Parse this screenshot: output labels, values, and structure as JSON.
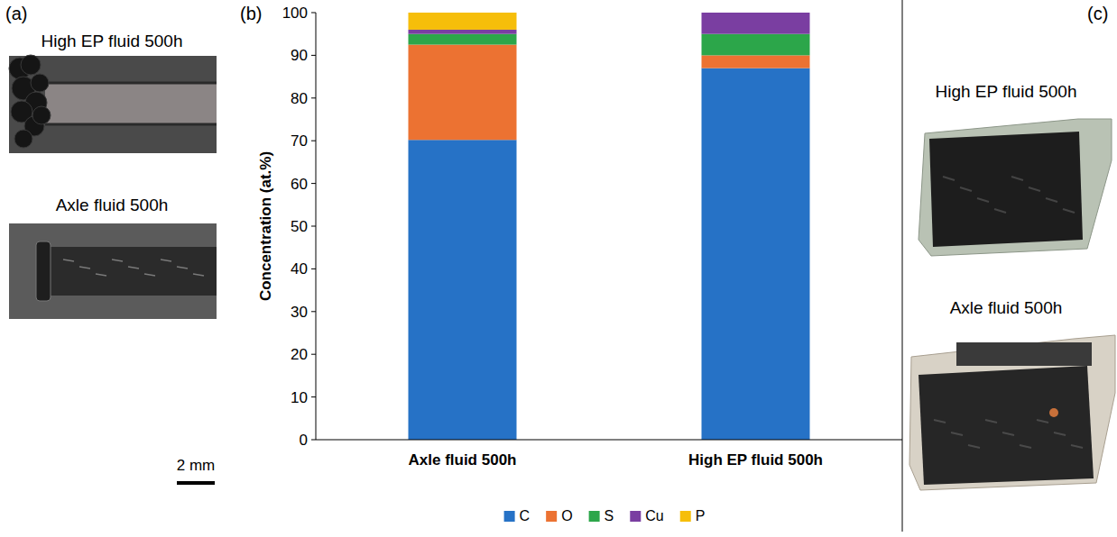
{
  "chart_data": {
    "type": "bar",
    "stacked": true,
    "y_label": "Concentration (at.%)",
    "categories": [
      "Axle fluid 500h",
      "High EP fluid 500h"
    ],
    "series": [
      {
        "name": "C",
        "color": "#2672c6",
        "values": [
          70.2,
          87
        ]
      },
      {
        "name": "O",
        "color": "#ec7232",
        "values": [
          22.3,
          3
        ]
      },
      {
        "name": "S",
        "color": "#2ca64a",
        "values": [
          2.5,
          5
        ]
      },
      {
        "name": "Cu",
        "color": "#7a3ea1",
        "values": [
          1,
          5
        ]
      },
      {
        "name": "P",
        "color": "#f6be0a",
        "values": [
          4,
          0
        ]
      }
    ],
    "ylim": [
      0,
      100
    ],
    "yticks": [
      0,
      10,
      20,
      30,
      40,
      50,
      60,
      70,
      80,
      90,
      100
    ],
    "grid": false,
    "legend": "bottom"
  },
  "panels": [
    {
      "letter": "(a)",
      "images": [
        {
          "label": "High EP fluid 500h"
        },
        {
          "label": "Axle fluid 500h"
        }
      ],
      "scale_bar": "2 mm"
    },
    {
      "letter": "(b)"
    },
    {
      "letter": "(c)",
      "images": [
        {
          "label": "High EP fluid 500h"
        },
        {
          "label": "Axle fluid 500h"
        }
      ]
    }
  ]
}
